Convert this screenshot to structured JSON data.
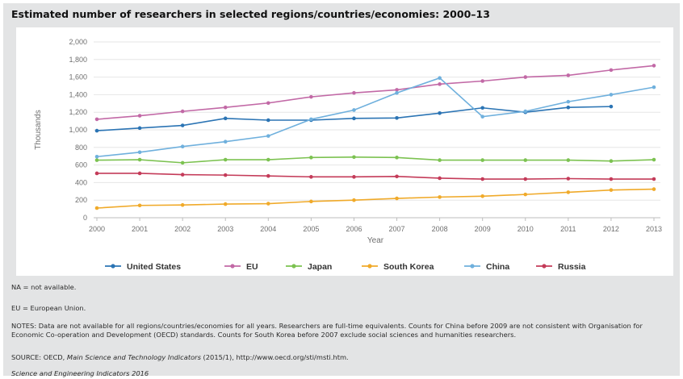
{
  "chart_data": {
    "type": "line",
    "title": "Estimated number of researchers in selected regions/countries/economies: 2000–13",
    "xlabel": "Year",
    "ylabel": "Thousands",
    "ylim": [
      0,
      2000
    ],
    "yticks": [
      "0",
      "200",
      "400",
      "600",
      "800",
      "1,000",
      "1,200",
      "1,400",
      "1,600",
      "1,800",
      "2,000"
    ],
    "x": [
      "2000",
      "2001",
      "2002",
      "2003",
      "2004",
      "2005",
      "2006",
      "2007",
      "2008",
      "2009",
      "2010",
      "2011",
      "2012",
      "2013"
    ],
    "grid": "horizontal",
    "legend_position": "bottom",
    "series": [
      {
        "name": "United States",
        "color": "#2b74b4",
        "values": [
          990,
          1020,
          1050,
          1130,
          1110,
          1110,
          1130,
          1135,
          1190,
          1250,
          1200,
          1255,
          1265,
          null
        ]
      },
      {
        "name": "EU",
        "color": "#c269a6",
        "values": [
          1120,
          1160,
          1210,
          1255,
          1305,
          1375,
          1420,
          1455,
          1520,
          1555,
          1600,
          1620,
          1680,
          1730
        ]
      },
      {
        "name": "Japan",
        "color": "#7cc251",
        "values": [
          655,
          660,
          625,
          660,
          660,
          685,
          690,
          685,
          655,
          655,
          655,
          655,
          645,
          660
        ]
      },
      {
        "name": "South Korea",
        "color": "#f0aa2a",
        "values": [
          110,
          140,
          145,
          155,
          160,
          185,
          200,
          220,
          235,
          245,
          265,
          290,
          315,
          325
        ]
      },
      {
        "name": "China",
        "color": "#6fb0dd",
        "values": [
          695,
          745,
          810,
          865,
          930,
          1120,
          1225,
          1420,
          1590,
          1150,
          1210,
          1320,
          1400,
          1485
        ]
      },
      {
        "name": "Russia",
        "color": "#c43b59",
        "values": [
          505,
          505,
          490,
          485,
          475,
          465,
          465,
          470,
          450,
          440,
          440,
          445,
          440,
          440
        ]
      }
    ]
  },
  "notes": {
    "na": "NA = not available.",
    "eu": "EU = European Union.",
    "main": "NOTES: Data are not available for all regions/countries/economies for all years. Researchers are full-time equivalents. Counts for China before 2009 are not consistent with Organisation for Economic Co-operation and Development (OECD) standards. Counts for South Korea before 2007 exclude social sciences and humanities researchers.",
    "source_prefix": "SOURCE: OECD, ",
    "source_title": "Main Science and Technology Indicators",
    "source_suffix": " (2015/1), http://www.oecd.org/sti/msti.htm.",
    "credit": "Science and Engineering Indicators 2016"
  }
}
